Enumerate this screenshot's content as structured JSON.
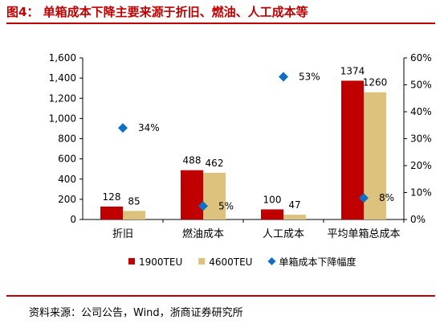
{
  "page": {
    "title": "图4：  单箱成本下降主要来源于折旧、燃油、人工成本等",
    "source": "资料来源：公司公告，Wind，浙商证券研究所"
  },
  "chart_data": {
    "type": "bar",
    "categories": [
      "折旧",
      "燃油成本",
      "人工成本",
      "平均单箱总成本"
    ],
    "series": [
      {
        "name": "1900TEU",
        "type": "bar",
        "axis": "left",
        "color": "#c00000",
        "values": [
          128,
          488,
          100,
          1374
        ],
        "labels": [
          "128",
          "488",
          "100",
          "1374"
        ]
      },
      {
        "name": "4600TEU",
        "type": "bar",
        "axis": "left",
        "color": "#dcc27c",
        "values": [
          85,
          462,
          47,
          1260
        ],
        "labels": [
          "85",
          "462",
          "47",
          "1260"
        ]
      },
      {
        "name": "单箱成本下降幅度",
        "type": "scatter",
        "axis": "right",
        "color": "#0f6fc6",
        "values": [
          34,
          5,
          53,
          8
        ],
        "labels": [
          "34%",
          "5%",
          "53%",
          "8%"
        ]
      }
    ],
    "y_left": {
      "min": 0,
      "max": 1600,
      "ticks": [
        "0",
        "200",
        "400",
        "600",
        "800",
        "1,000",
        "1,200",
        "1,400",
        "1,600"
      ]
    },
    "y_right": {
      "min": 0,
      "max": 60,
      "ticks": [
        "0%",
        "10%",
        "20%",
        "30%",
        "40%",
        "50%",
        "60%"
      ]
    },
    "legend_position": "bottom",
    "grid": false
  }
}
